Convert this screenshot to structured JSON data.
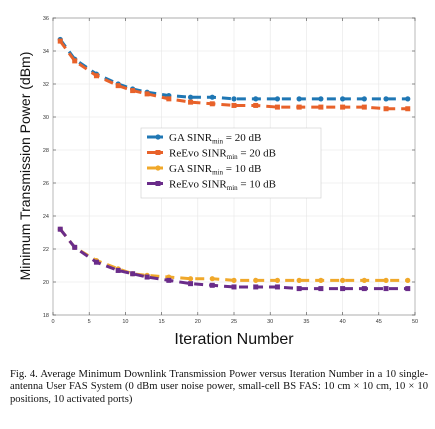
{
  "chart_data": {
    "type": "line",
    "x": [
      1,
      3,
      6,
      9,
      11,
      13,
      16,
      19,
      22,
      25,
      28,
      31,
      34,
      37,
      40,
      43,
      46,
      49
    ],
    "xlabel": "Iteration Number",
    "ylabel": "Minimum Transmission Power (dBm)",
    "xlim": [
      0,
      50
    ],
    "ylim": [
      18,
      36
    ],
    "xticks": [
      0,
      5,
      10,
      15,
      20,
      25,
      30,
      35,
      40,
      45,
      50
    ],
    "yticks": [
      18,
      20,
      22,
      24,
      26,
      28,
      30,
      32,
      34,
      36
    ],
    "grid": true,
    "line_style": "dashed",
    "legend_position": "center",
    "series": [
      {
        "name": "GA SINR_min = 20 dB",
        "name_main": "GA SINR",
        "name_sub": "min",
        "name_tail": " = 20 dB",
        "color": "#1f77b4",
        "marker": "circle",
        "values": [
          34.7,
          33.5,
          32.6,
          32.0,
          31.7,
          31.5,
          31.3,
          31.2,
          31.2,
          31.1,
          31.1,
          31.1,
          31.1,
          31.1,
          31.1,
          31.1,
          31.1,
          31.1
        ]
      },
      {
        "name": "ReEvo SINR_min = 20 dB",
        "name_main": "ReEvo SINR",
        "name_sub": "min",
        "name_tail": " = 20 dB",
        "color": "#e8622a",
        "marker": "square",
        "values": [
          34.6,
          33.4,
          32.5,
          31.9,
          31.6,
          31.4,
          31.1,
          30.9,
          30.8,
          30.7,
          30.7,
          30.6,
          30.6,
          30.6,
          30.6,
          30.6,
          30.5,
          30.5
        ]
      },
      {
        "name": "GA SINR_min = 10 dB",
        "name_main": "GA SINR",
        "name_sub": "min",
        "name_tail": " = 10 dB",
        "color": "#f0a82a",
        "marker": "circle",
        "values": [
          23.2,
          22.1,
          21.3,
          20.8,
          20.5,
          20.4,
          20.3,
          20.2,
          20.2,
          20.1,
          20.1,
          20.1,
          20.1,
          20.1,
          20.1,
          20.1,
          20.1,
          20.1
        ]
      },
      {
        "name": "ReEvo SINR_min = 10 dB",
        "name_main": "ReEvo SINR",
        "name_sub": "min",
        "name_tail": " = 10 dB",
        "color": "#6a2c8a",
        "marker": "square",
        "values": [
          23.2,
          22.1,
          21.2,
          20.7,
          20.5,
          20.3,
          20.1,
          19.9,
          19.8,
          19.7,
          19.7,
          19.7,
          19.6,
          19.6,
          19.6,
          19.6,
          19.6,
          19.6
        ]
      }
    ]
  },
  "caption": "Fig. 4.   Average Minimum Downlink Transmission Power versus Iteration Number in a 10 single-antenna User FAS System (0 dBm user noise power, small-cell BS FAS: 10 cm × 10 cm, 10 × 10 positions, 10 activated ports)"
}
